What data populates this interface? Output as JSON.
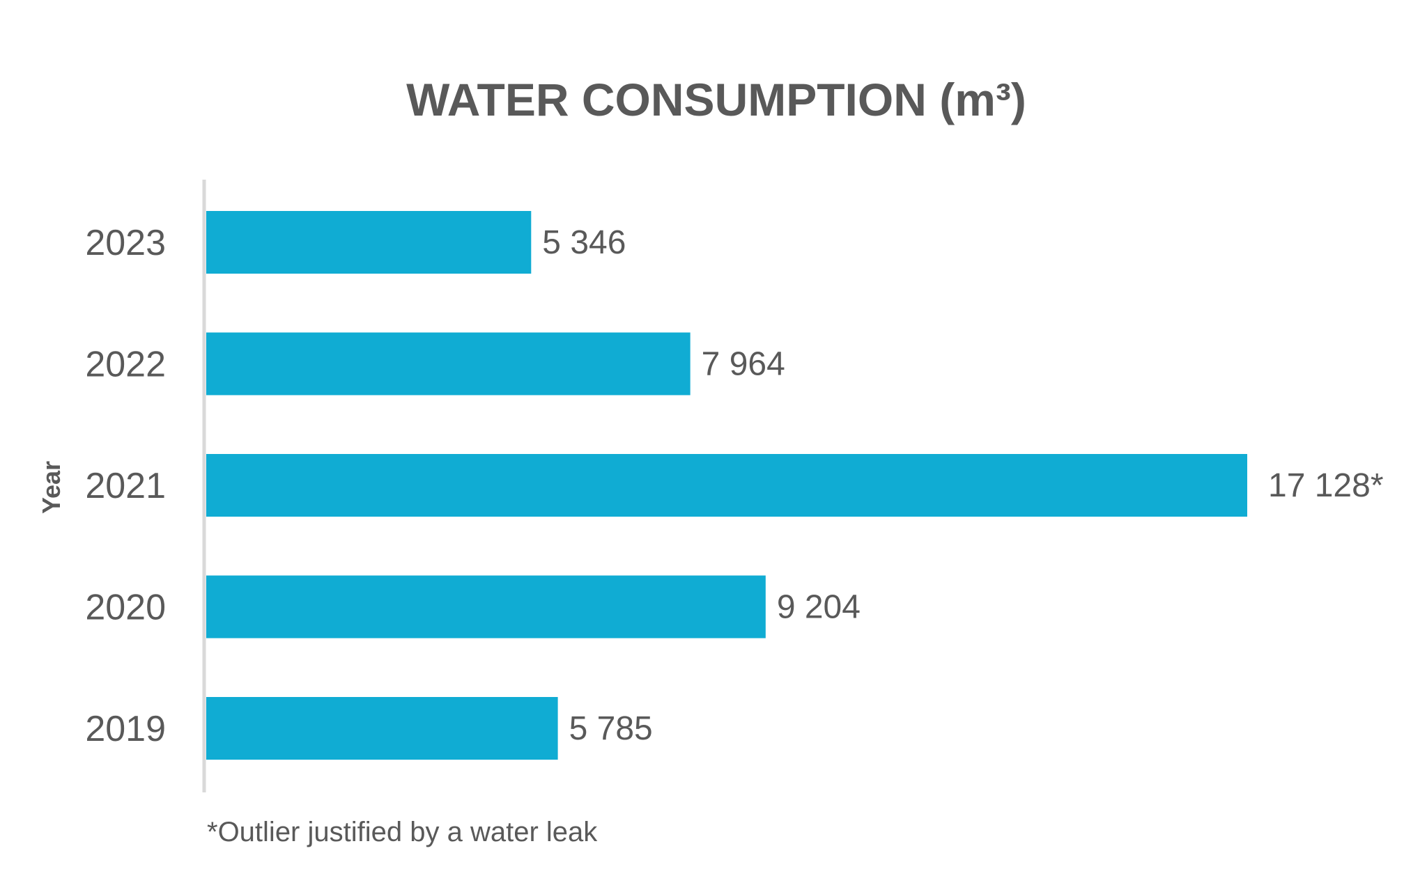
{
  "chart_data": {
    "type": "bar",
    "orientation": "horizontal",
    "title": "WATER CONSUMPTION (m³)",
    "ylabel": "Year",
    "xlabel": "",
    "categories": [
      "2023",
      "2022",
      "2021",
      "2020",
      "2019"
    ],
    "values": [
      5346,
      7964,
      17128,
      9204,
      5785
    ],
    "data_labels": [
      "5 346",
      "7 964",
      "17 128*",
      "9 204",
      "5 785"
    ],
    "xlim": [
      0,
      17128
    ],
    "grid": false,
    "legend": "none",
    "footnote": "*Outlier justified by a water leak",
    "bar_color": "#10ACD3",
    "axis_color": "#D9D9D9",
    "text_color": "#595959"
  }
}
